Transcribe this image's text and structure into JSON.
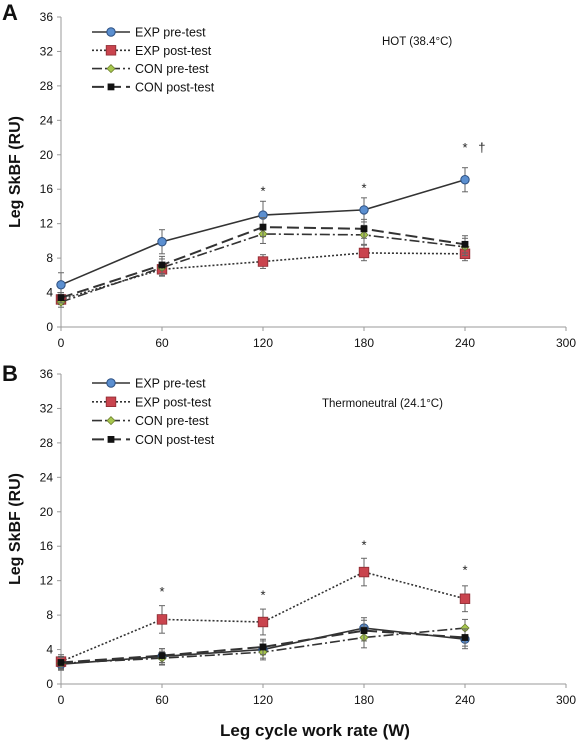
{
  "chart_data": [
    {
      "panel": "A",
      "type": "line",
      "condition": "HOT (38.4°C)",
      "ylabel": "Leg SkBF (RU)",
      "xlabel": "",
      "xlim": [
        0,
        300
      ],
      "ylim": [
        0,
        36
      ],
      "xticks": [
        0,
        60,
        120,
        180,
        240,
        300
      ],
      "yticks": [
        0,
        4,
        8,
        12,
        16,
        20,
        24,
        28,
        32,
        36
      ],
      "grid": false,
      "legend_position": "top-left",
      "x": [
        0,
        60,
        120,
        180,
        240
      ],
      "series": [
        {
          "name": "EXP pre-test",
          "values": [
            4.9,
            9.9,
            13.0,
            13.6,
            17.1
          ],
          "errors": [
            1.4,
            1.4,
            1.6,
            1.4,
            1.4
          ]
        },
        {
          "name": "EXP post-test",
          "values": [
            3.2,
            6.7,
            7.6,
            8.6,
            8.5
          ],
          "errors": [
            0.6,
            0.7,
            0.8,
            0.9,
            0.8
          ]
        },
        {
          "name": "CON pre-test",
          "values": [
            2.9,
            6.9,
            10.8,
            10.7,
            9.3
          ],
          "errors": [
            0.6,
            1.0,
            1.1,
            1.1,
            1.0
          ]
        },
        {
          "name": "CON post-test",
          "values": [
            3.4,
            7.2,
            11.6,
            11.4,
            9.6
          ],
          "errors": [
            0.6,
            1.0,
            1.1,
            1.1,
            1.0
          ]
        }
      ],
      "annotations": [
        {
          "x": 120,
          "y": 15.3,
          "text": "*"
        },
        {
          "x": 180,
          "y": 15.6,
          "text": "*"
        },
        {
          "x": 240,
          "y": 20.3,
          "text": "*"
        },
        {
          "x": 250,
          "y": 20.3,
          "text": "†"
        }
      ]
    },
    {
      "panel": "B",
      "type": "line",
      "condition": "Thermoneutral (24.1°C)",
      "ylabel": "Leg SkBF (RU)",
      "xlabel": "Leg cycle work rate (W)",
      "xlim": [
        0,
        300
      ],
      "ylim": [
        0,
        36
      ],
      "xticks": [
        0,
        60,
        120,
        180,
        240,
        300
      ],
      "yticks": [
        0,
        4,
        8,
        12,
        16,
        20,
        24,
        28,
        32,
        36
      ],
      "grid": false,
      "legend_position": "top-left",
      "x": [
        0,
        60,
        120,
        180,
        240
      ],
      "series": [
        {
          "name": "EXP pre-test",
          "values": [
            2.3,
            3.2,
            4.0,
            6.5,
            5.2
          ],
          "errors": [
            0.7,
            0.9,
            1.0,
            1.2,
            1.1
          ]
        },
        {
          "name": "EXP post-test",
          "values": [
            2.6,
            7.5,
            7.2,
            13.0,
            9.9
          ],
          "errors": [
            0.8,
            1.6,
            1.5,
            1.6,
            1.5
          ]
        },
        {
          "name": "CON pre-test",
          "values": [
            2.4,
            3.0,
            3.7,
            5.4,
            6.5
          ],
          "errors": [
            0.7,
            0.8,
            0.9,
            1.2,
            1.0
          ]
        },
        {
          "name": "CON post-test",
          "values": [
            2.5,
            3.3,
            4.3,
            6.2,
            5.4
          ],
          "errors": [
            0.7,
            0.8,
            0.9,
            1.2,
            1.0
          ]
        }
      ],
      "annotations": [
        {
          "x": 60,
          "y": 10.2,
          "text": "*"
        },
        {
          "x": 120,
          "y": 9.8,
          "text": "*"
        },
        {
          "x": 180,
          "y": 15.6,
          "text": "*"
        },
        {
          "x": 240,
          "y": 12.7,
          "text": "*"
        }
      ]
    }
  ],
  "colors": {
    "exp_pre_marker": "#5b8fd0",
    "exp_post_marker": "#c9444e",
    "con_pre_marker": "#a7c74e",
    "con_post_marker": "#111111",
    "axis": "#9a9a9a",
    "line": "#333333"
  },
  "icons": {
    "exp_pre": "circle-marker-icon",
    "exp_post": "square-marker-icon",
    "con_pre": "diamond-marker-icon",
    "con_post": "black-square-marker-icon"
  }
}
